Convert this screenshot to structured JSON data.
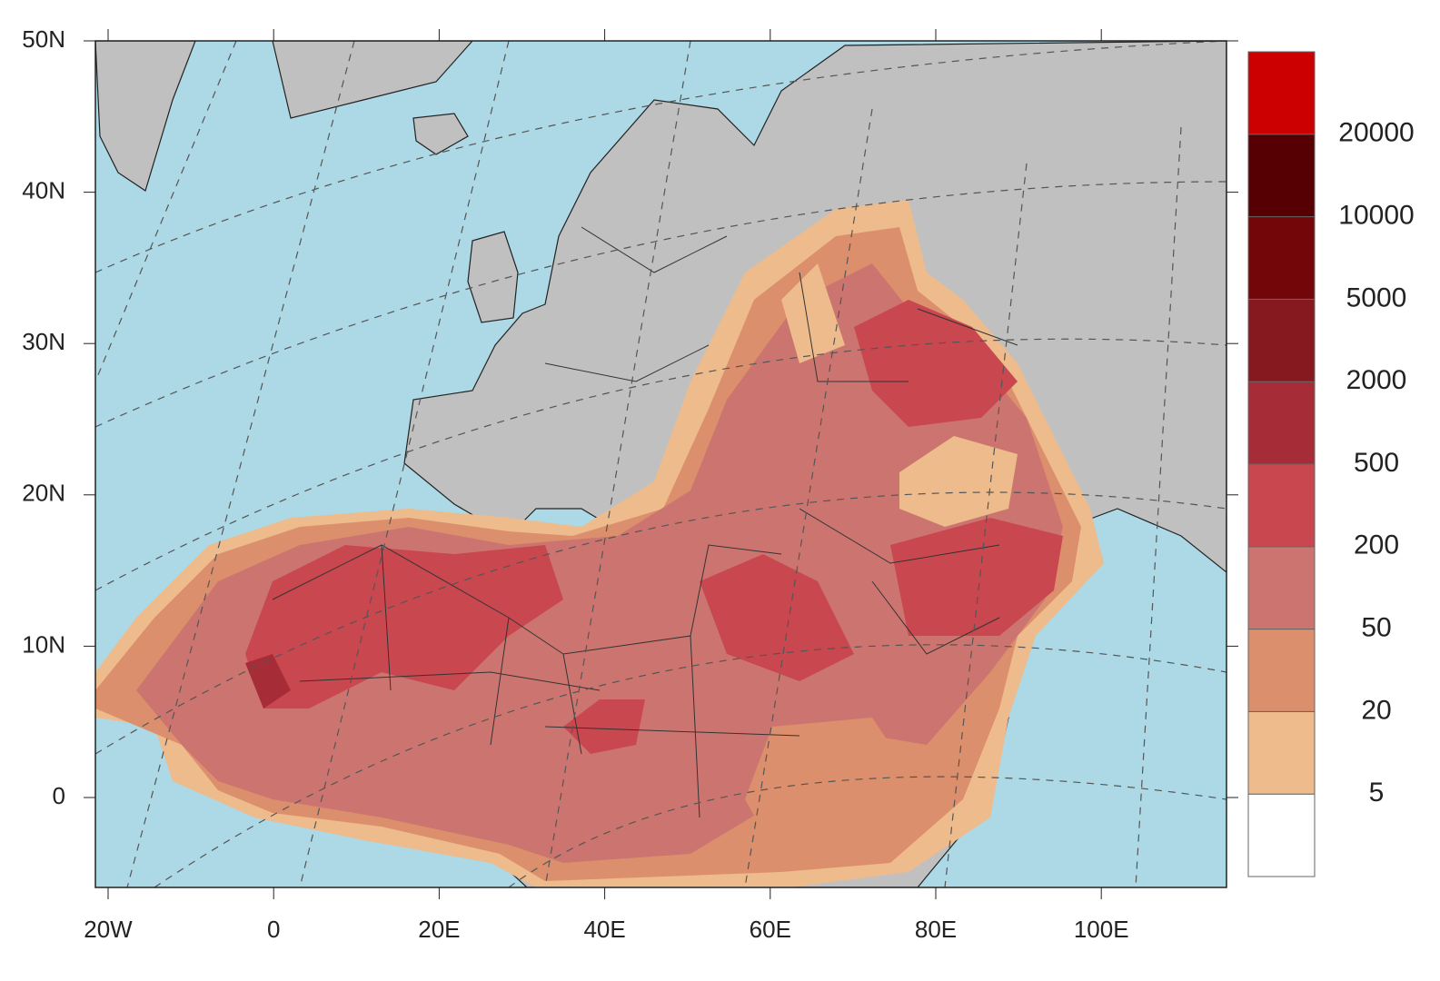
{
  "map": {
    "x_ticks": [
      "20W",
      "0",
      "20E",
      "40E",
      "60E",
      "80E",
      "100E"
    ],
    "y_ticks": [
      "50N",
      "40N",
      "30N",
      "20N",
      "10N",
      "0"
    ],
    "colorbar": {
      "levels": [
        "5",
        "20",
        "50",
        "200",
        "500",
        "2000",
        "5000",
        "10000",
        "20000"
      ],
      "colors": [
        "#ffffff",
        "#eebb8c",
        "#dc8f6c",
        "#cc7570",
        "#c9474f",
        "#a62d38",
        "#861820",
        "#730608",
        "#560004",
        "#cc0000"
      ]
    }
  }
}
